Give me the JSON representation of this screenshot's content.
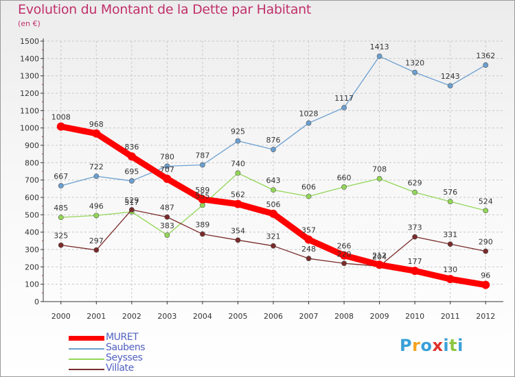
{
  "header": {
    "title": "Evolution du Montant de la Dette par Habitant",
    "subtitle": "(en €)"
  },
  "logo": {
    "text": "Proxiti",
    "letters": [
      "P",
      "r",
      "o",
      "x",
      "i",
      "t",
      "i"
    ],
    "colors": [
      "#3aa0d8",
      "#f4a21d",
      "#3aa0d8",
      "#e0302a",
      "#3aa0d8",
      "#8cc63f",
      "#3aa0d8"
    ]
  },
  "chart_data": {
    "type": "line",
    "title": "Evolution du Montant de la Dette par Habitant",
    "subtitle": "(en €)",
    "xlabel": "",
    "ylabel": "",
    "ylim": [
      0,
      1500
    ],
    "yticks": [
      0,
      100,
      200,
      300,
      400,
      500,
      600,
      700,
      800,
      900,
      1000,
      1100,
      1200,
      1300,
      1400,
      1500
    ],
    "categories": [
      "2000",
      "2001",
      "2002",
      "2003",
      "2004",
      "2005",
      "2006",
      "2007",
      "2008",
      "2009",
      "2010",
      "2011",
      "2012"
    ],
    "grid": true,
    "legend_position": "bottom-left",
    "series": [
      {
        "name": "MURET",
        "color": "#ff0000",
        "values": [
          1008,
          968,
          836,
          707,
          589,
          562,
          506,
          357,
          266,
          212,
          177,
          130,
          96
        ]
      },
      {
        "name": "Saubens",
        "color": "#6b9fd0",
        "values": [
          667,
          722,
          695,
          780,
          787,
          925,
          876,
          1028,
          1117,
          1413,
          1320,
          1243,
          1362
        ]
      },
      {
        "name": "Seysses",
        "color": "#93d657",
        "values": [
          485,
          496,
          517,
          383,
          555,
          740,
          643,
          606,
          660,
          708,
          629,
          576,
          524
        ]
      },
      {
        "name": "Villate",
        "color": "#7a2a2a",
        "values": [
          325,
          297,
          529,
          487,
          389,
          354,
          321,
          248,
          220,
          204,
          373,
          331,
          290
        ]
      }
    ]
  }
}
